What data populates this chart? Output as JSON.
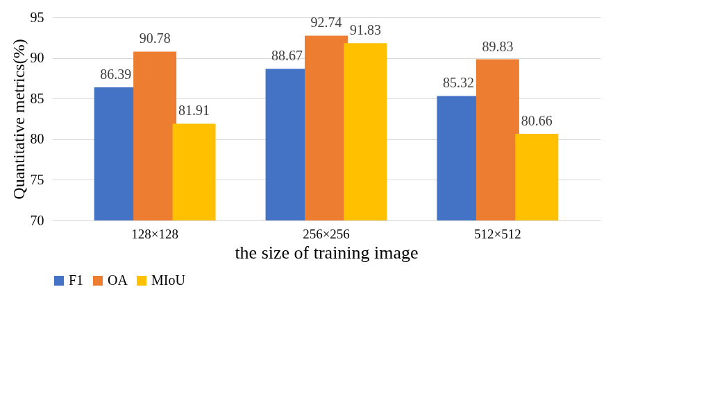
{
  "chart_data": {
    "type": "bar",
    "xlabel": "the size of training image",
    "ylabel": "Quantitative metrics(%)",
    "categories": [
      "128×128",
      "256×256",
      "512×512"
    ],
    "series": [
      {
        "name": "F1",
        "color": "#4472c4",
        "values": [
          86.39,
          88.67,
          85.32
        ]
      },
      {
        "name": "OA",
        "color": "#ed7d31",
        "values": [
          90.78,
          92.74,
          89.83
        ]
      },
      {
        "name": "MIoU",
        "color": "#ffc000",
        "values": [
          81.91,
          91.83,
          80.66
        ]
      }
    ],
    "ylim": [
      70,
      95
    ],
    "yticks": [
      70,
      75,
      80,
      85,
      90,
      95
    ],
    "grid": "y",
    "legend": "bottom",
    "data_labels": true
  }
}
